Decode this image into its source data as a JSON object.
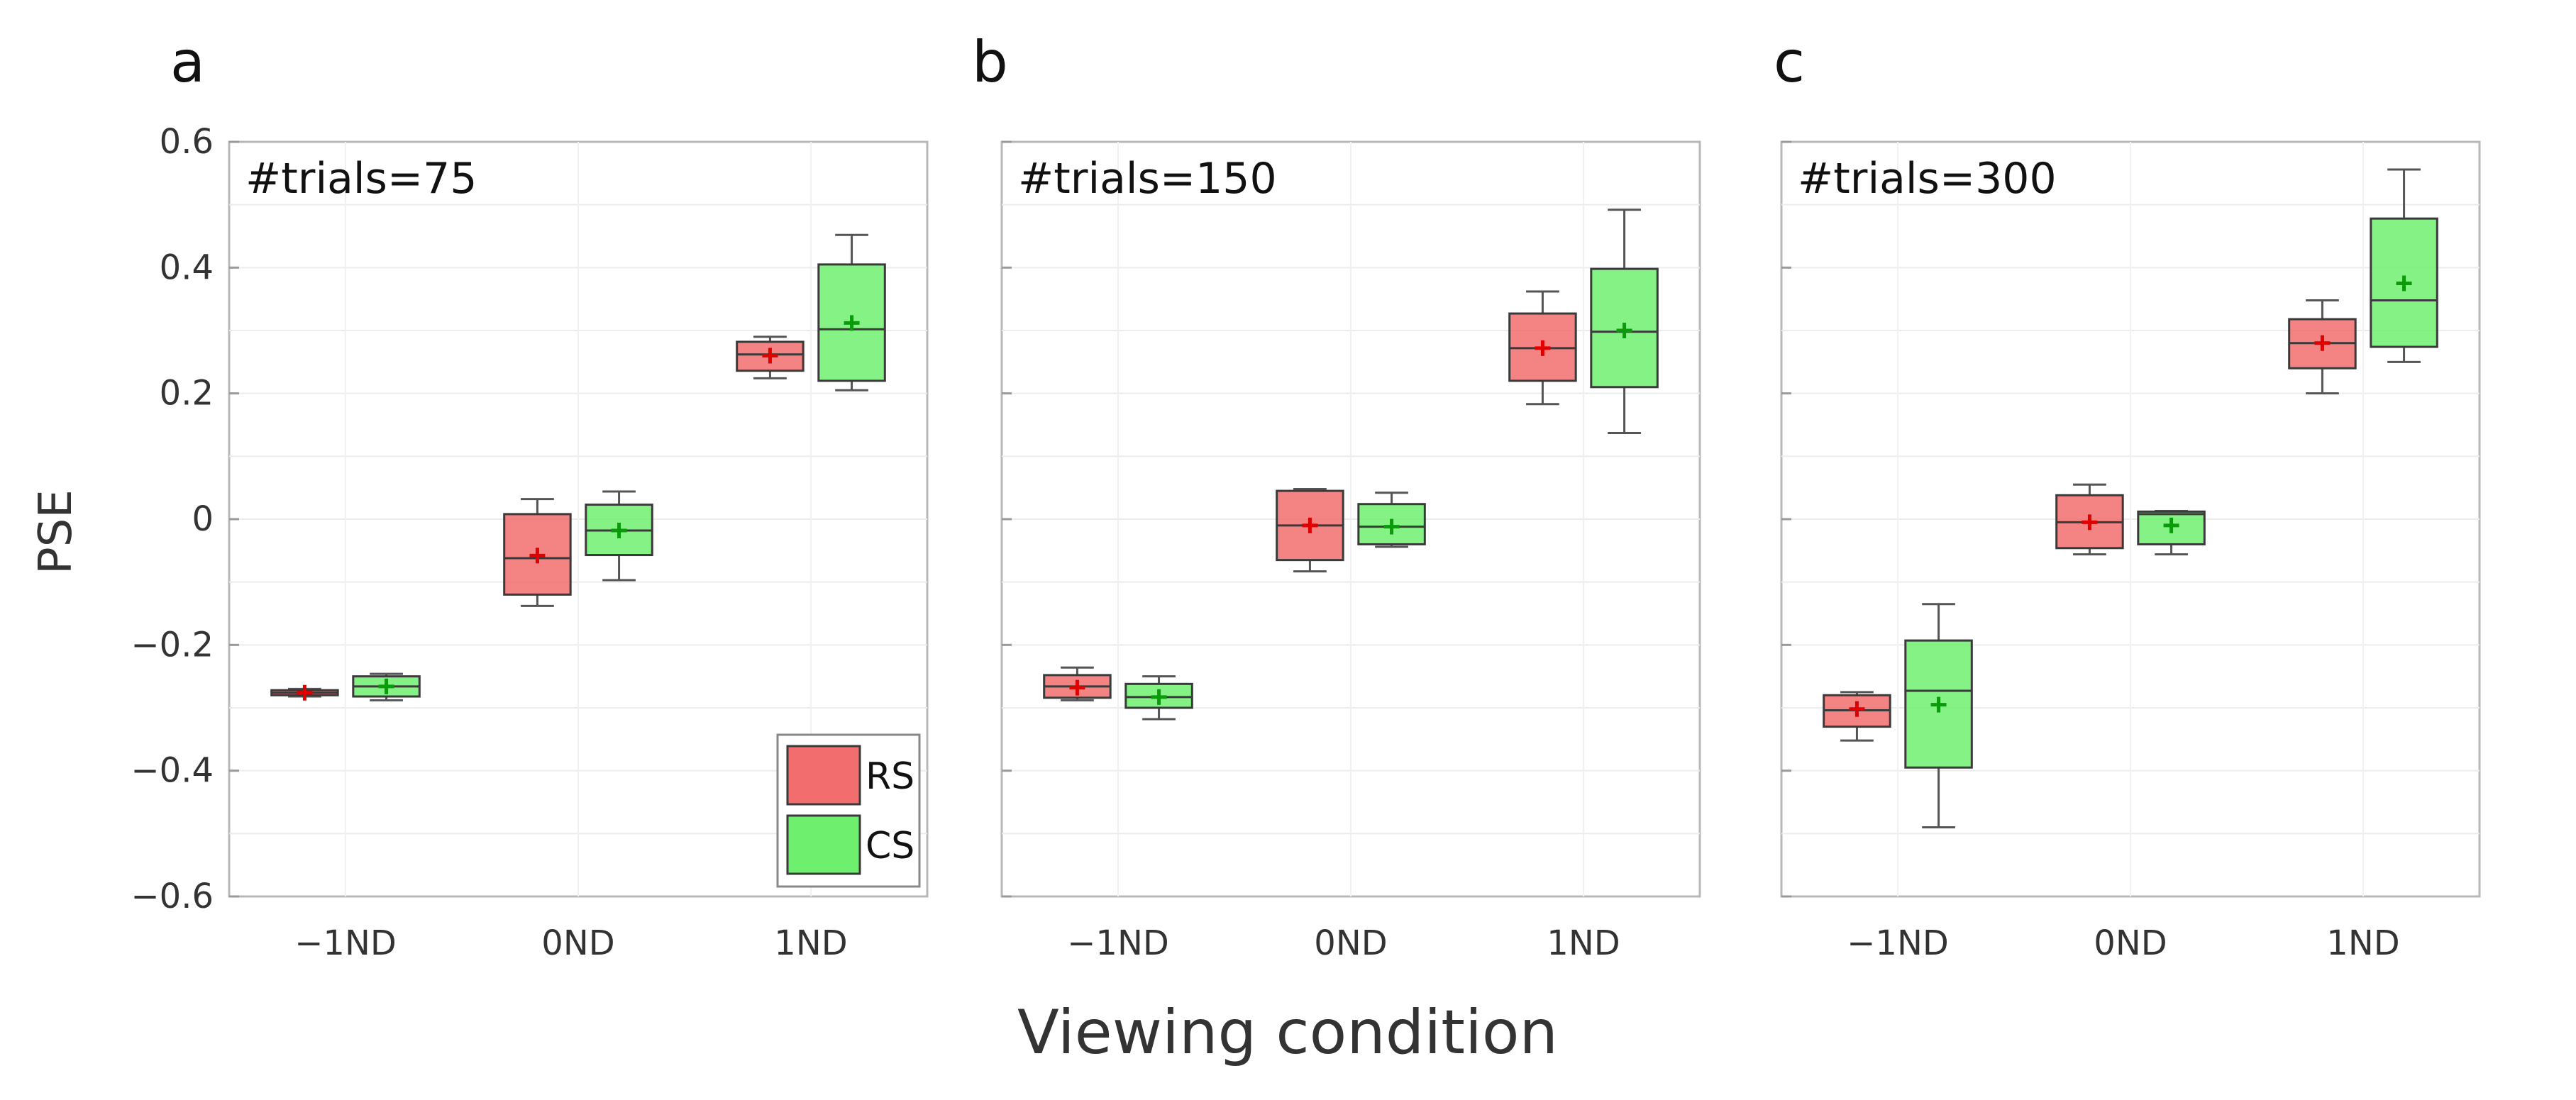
{
  "chart_data": {
    "type": "box",
    "xlabel": "Viewing condition",
    "ylabel": "PSE",
    "ylim": [
      -0.6,
      0.6
    ],
    "yticks": [
      0.6,
      0.4,
      0.2,
      0,
      -0.2,
      -0.4,
      -0.6
    ],
    "ytick_labels": [
      "0.6",
      "0.4",
      "0.2",
      "0",
      "−0.2",
      "−0.4",
      "−0.6"
    ],
    "categories": [
      "−1ND",
      "0ND",
      "1ND"
    ],
    "legend": {
      "position": "bottom-right",
      "entries": [
        {
          "name": "RS",
          "color": "#f26d6d"
        },
        {
          "name": "CS",
          "color": "#6ef06e"
        }
      ]
    },
    "series_colors": {
      "RS": {
        "fill": "#f26d6d",
        "mean": "#e00000"
      },
      "CS": {
        "fill": "#6ef06e",
        "mean": "#0a9a0a"
      }
    },
    "panels": [
      {
        "letter": "a",
        "title": "#trials=75",
        "show_legend": true,
        "boxes": [
          {
            "category": "−1ND",
            "series": "RS",
            "min": -0.282,
            "q1": -0.28,
            "median": -0.276,
            "q3": -0.272,
            "max": -0.27,
            "mean": -0.276
          },
          {
            "category": "−1ND",
            "series": "CS",
            "min": -0.288,
            "q1": -0.282,
            "median": -0.266,
            "q3": -0.25,
            "max": -0.246,
            "mean": -0.266
          },
          {
            "category": "0ND",
            "series": "RS",
            "min": -0.138,
            "q1": -0.12,
            "median": -0.062,
            "q3": 0.008,
            "max": 0.032,
            "mean": -0.058
          },
          {
            "category": "0ND",
            "series": "CS",
            "min": -0.097,
            "q1": -0.057,
            "median": -0.018,
            "q3": 0.023,
            "max": 0.044,
            "mean": -0.018
          },
          {
            "category": "1ND",
            "series": "RS",
            "min": 0.224,
            "q1": 0.236,
            "median": 0.262,
            "q3": 0.282,
            "max": 0.29,
            "mean": 0.26
          },
          {
            "category": "1ND",
            "series": "CS",
            "min": 0.205,
            "q1": 0.22,
            "median": 0.302,
            "q3": 0.405,
            "max": 0.452,
            "mean": 0.312
          }
        ]
      },
      {
        "letter": "b",
        "title": "#trials=150",
        "show_legend": false,
        "boxes": [
          {
            "category": "−1ND",
            "series": "RS",
            "min": -0.288,
            "q1": -0.284,
            "median": -0.266,
            "q3": -0.248,
            "max": -0.236,
            "mean": -0.268
          },
          {
            "category": "−1ND",
            "series": "CS",
            "min": -0.318,
            "q1": -0.3,
            "median": -0.283,
            "q3": -0.262,
            "max": -0.25,
            "mean": -0.283
          },
          {
            "category": "0ND",
            "series": "RS",
            "min": -0.083,
            "q1": -0.065,
            "median": -0.01,
            "q3": 0.045,
            "max": 0.048,
            "mean": -0.01
          },
          {
            "category": "0ND",
            "series": "CS",
            "min": -0.044,
            "q1": -0.04,
            "median": -0.012,
            "q3": 0.024,
            "max": 0.042,
            "mean": -0.012
          },
          {
            "category": "1ND",
            "series": "RS",
            "min": 0.183,
            "q1": 0.22,
            "median": 0.272,
            "q3": 0.327,
            "max": 0.362,
            "mean": 0.272
          },
          {
            "category": "1ND",
            "series": "CS",
            "min": 0.137,
            "q1": 0.21,
            "median": 0.298,
            "q3": 0.398,
            "max": 0.492,
            "mean": 0.3
          }
        ]
      },
      {
        "letter": "c",
        "title": "#trials=300",
        "show_legend": false,
        "boxes": [
          {
            "category": "−1ND",
            "series": "RS",
            "min": -0.352,
            "q1": -0.33,
            "median": -0.304,
            "q3": -0.28,
            "max": -0.275,
            "mean": -0.302
          },
          {
            "category": "−1ND",
            "series": "CS",
            "min": -0.49,
            "q1": -0.395,
            "median": -0.273,
            "q3": -0.193,
            "max": -0.135,
            "mean": -0.295
          },
          {
            "category": "0ND",
            "series": "RS",
            "min": -0.056,
            "q1": -0.046,
            "median": -0.005,
            "q3": 0.038,
            "max": 0.055,
            "mean": -0.005
          },
          {
            "category": "0ND",
            "series": "CS",
            "min": -0.056,
            "q1": -0.04,
            "median": 0.008,
            "q3": 0.012,
            "max": 0.013,
            "mean": -0.01
          },
          {
            "category": "1ND",
            "series": "RS",
            "min": 0.2,
            "q1": 0.24,
            "median": 0.28,
            "q3": 0.318,
            "max": 0.348,
            "mean": 0.28
          },
          {
            "category": "1ND",
            "series": "CS",
            "min": 0.25,
            "q1": 0.274,
            "median": 0.348,
            "q3": 0.478,
            "max": 0.556,
            "mean": 0.375
          }
        ]
      }
    ]
  }
}
